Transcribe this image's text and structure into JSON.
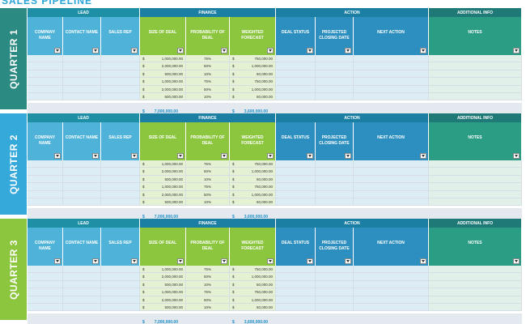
{
  "title": "SALES PIPELINE",
  "colors": {
    "lead_group": "#1f8fa5",
    "lead_header": "#4fb3d9",
    "finance_group": "#1b7fa3",
    "finance_header": "#8cc63f",
    "action_group": "#1b7fa3",
    "action_header": "#2c8fbf",
    "info_group": "#1f7a77",
    "info_header": "#2c9d85",
    "quarter1": "#2b8a82",
    "quarter2": "#36a9db",
    "quarter3": "#8cc63f",
    "row_blue": "#dcedf6",
    "row_green": "#e4f2d3",
    "row_info": "#e1f0e8",
    "total_text": "#1f8fc9"
  },
  "groups": {
    "lead": "LEAD",
    "finance": "FINANCE",
    "action": "ACTION",
    "info": "ADDITIONAL INFO"
  },
  "columns": {
    "company": "COMPANY NAME",
    "contact": "CONTACT NAME",
    "rep": "SALES REP",
    "size": "SIZE OF DEAL",
    "prob": "PROBABILITY OF DEAL",
    "weighted": "WEIGHTED FORECAST",
    "status": "DEAL STATUS",
    "closing": "PROJECTED CLOSING DATE",
    "next": "NEXT ACTION",
    "notes": "NOTES"
  },
  "currency": "$",
  "quarters": [
    {
      "label": "QUARTER 1",
      "rows": [
        {
          "size": "1,000,000.00",
          "prob": "75%",
          "weighted": "750,000.00"
        },
        {
          "size": "2,000,000.00",
          "prob": "50%",
          "weighted": "1,000,000.00"
        },
        {
          "size": "500,000.00",
          "prob": "10%",
          "weighted": "50,000.00"
        },
        {
          "size": "1,000,000.00",
          "prob": "75%",
          "weighted": "750,000.00"
        },
        {
          "size": "2,000,000.00",
          "prob": "50%",
          "weighted": "1,000,000.00"
        },
        {
          "size": "500,000.00",
          "prob": "10%",
          "weighted": "50,000.00"
        }
      ],
      "total_size": "7,000,000.00",
      "total_weighted": "3,600,000.00"
    },
    {
      "label": "QUARTER 2",
      "rows": [
        {
          "size": "1,000,000.00",
          "prob": "75%",
          "weighted": "750,000.00"
        },
        {
          "size": "2,000,000.00",
          "prob": "50%",
          "weighted": "1,000,000.00"
        },
        {
          "size": "500,000.00",
          "prob": "10%",
          "weighted": "50,000.00"
        },
        {
          "size": "1,000,000.00",
          "prob": "75%",
          "weighted": "750,000.00"
        },
        {
          "size": "2,000,000.00",
          "prob": "50%",
          "weighted": "1,000,000.00"
        },
        {
          "size": "500,000.00",
          "prob": "10%",
          "weighted": "50,000.00"
        }
      ],
      "total_size": "7,000,000.00",
      "total_weighted": "3,600,000.00"
    },
    {
      "label": "QUARTER 3",
      "rows": [
        {
          "size": "1,000,000.00",
          "prob": "75%",
          "weighted": "750,000.00"
        },
        {
          "size": "2,000,000.00",
          "prob": "50%",
          "weighted": "1,000,000.00"
        },
        {
          "size": "500,000.00",
          "prob": "10%",
          "weighted": "50,000.00"
        },
        {
          "size": "1,000,000.00",
          "prob": "75%",
          "weighted": "750,000.00"
        },
        {
          "size": "2,000,000.00",
          "prob": "50%",
          "weighted": "1,000,000.00"
        },
        {
          "size": "500,000.00",
          "prob": "10%",
          "weighted": "50,000.00"
        }
      ],
      "total_size": "7,000,000.00",
      "total_weighted": "3,600,000.00"
    }
  ]
}
